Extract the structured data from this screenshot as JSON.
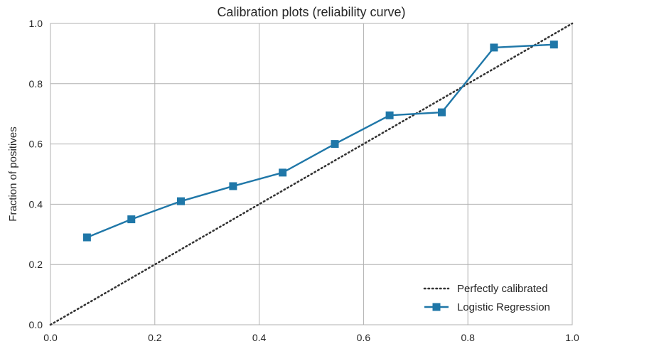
{
  "chart_data": {
    "type": "line",
    "title": "Calibration plots (reliability curve)",
    "xlabel": "",
    "ylabel": "Fraction of positives",
    "xlim": [
      0.0,
      1.0
    ],
    "ylim": [
      0.0,
      1.0
    ],
    "x_ticks": [
      "0.0",
      "0.2",
      "0.4",
      "0.6",
      "0.8",
      "1.0"
    ],
    "y_ticks": [
      "0.0",
      "0.2",
      "0.4",
      "0.6",
      "0.8",
      "1.0"
    ],
    "grid": true,
    "legend_position": "bottom-right",
    "series": [
      {
        "name": "Perfectly calibrated",
        "style": "dotted",
        "color": "#333333",
        "x": [
          0.0,
          1.0
        ],
        "y": [
          0.0,
          1.0
        ]
      },
      {
        "name": "Logistic Regression",
        "style": "solid",
        "marker": "square",
        "color": "#1f77a8",
        "x": [
          0.07,
          0.155,
          0.25,
          0.35,
          0.445,
          0.545,
          0.65,
          0.75,
          0.85,
          0.965
        ],
        "y": [
          0.29,
          0.35,
          0.41,
          0.46,
          0.505,
          0.6,
          0.695,
          0.705,
          0.92,
          0.93
        ]
      }
    ]
  }
}
